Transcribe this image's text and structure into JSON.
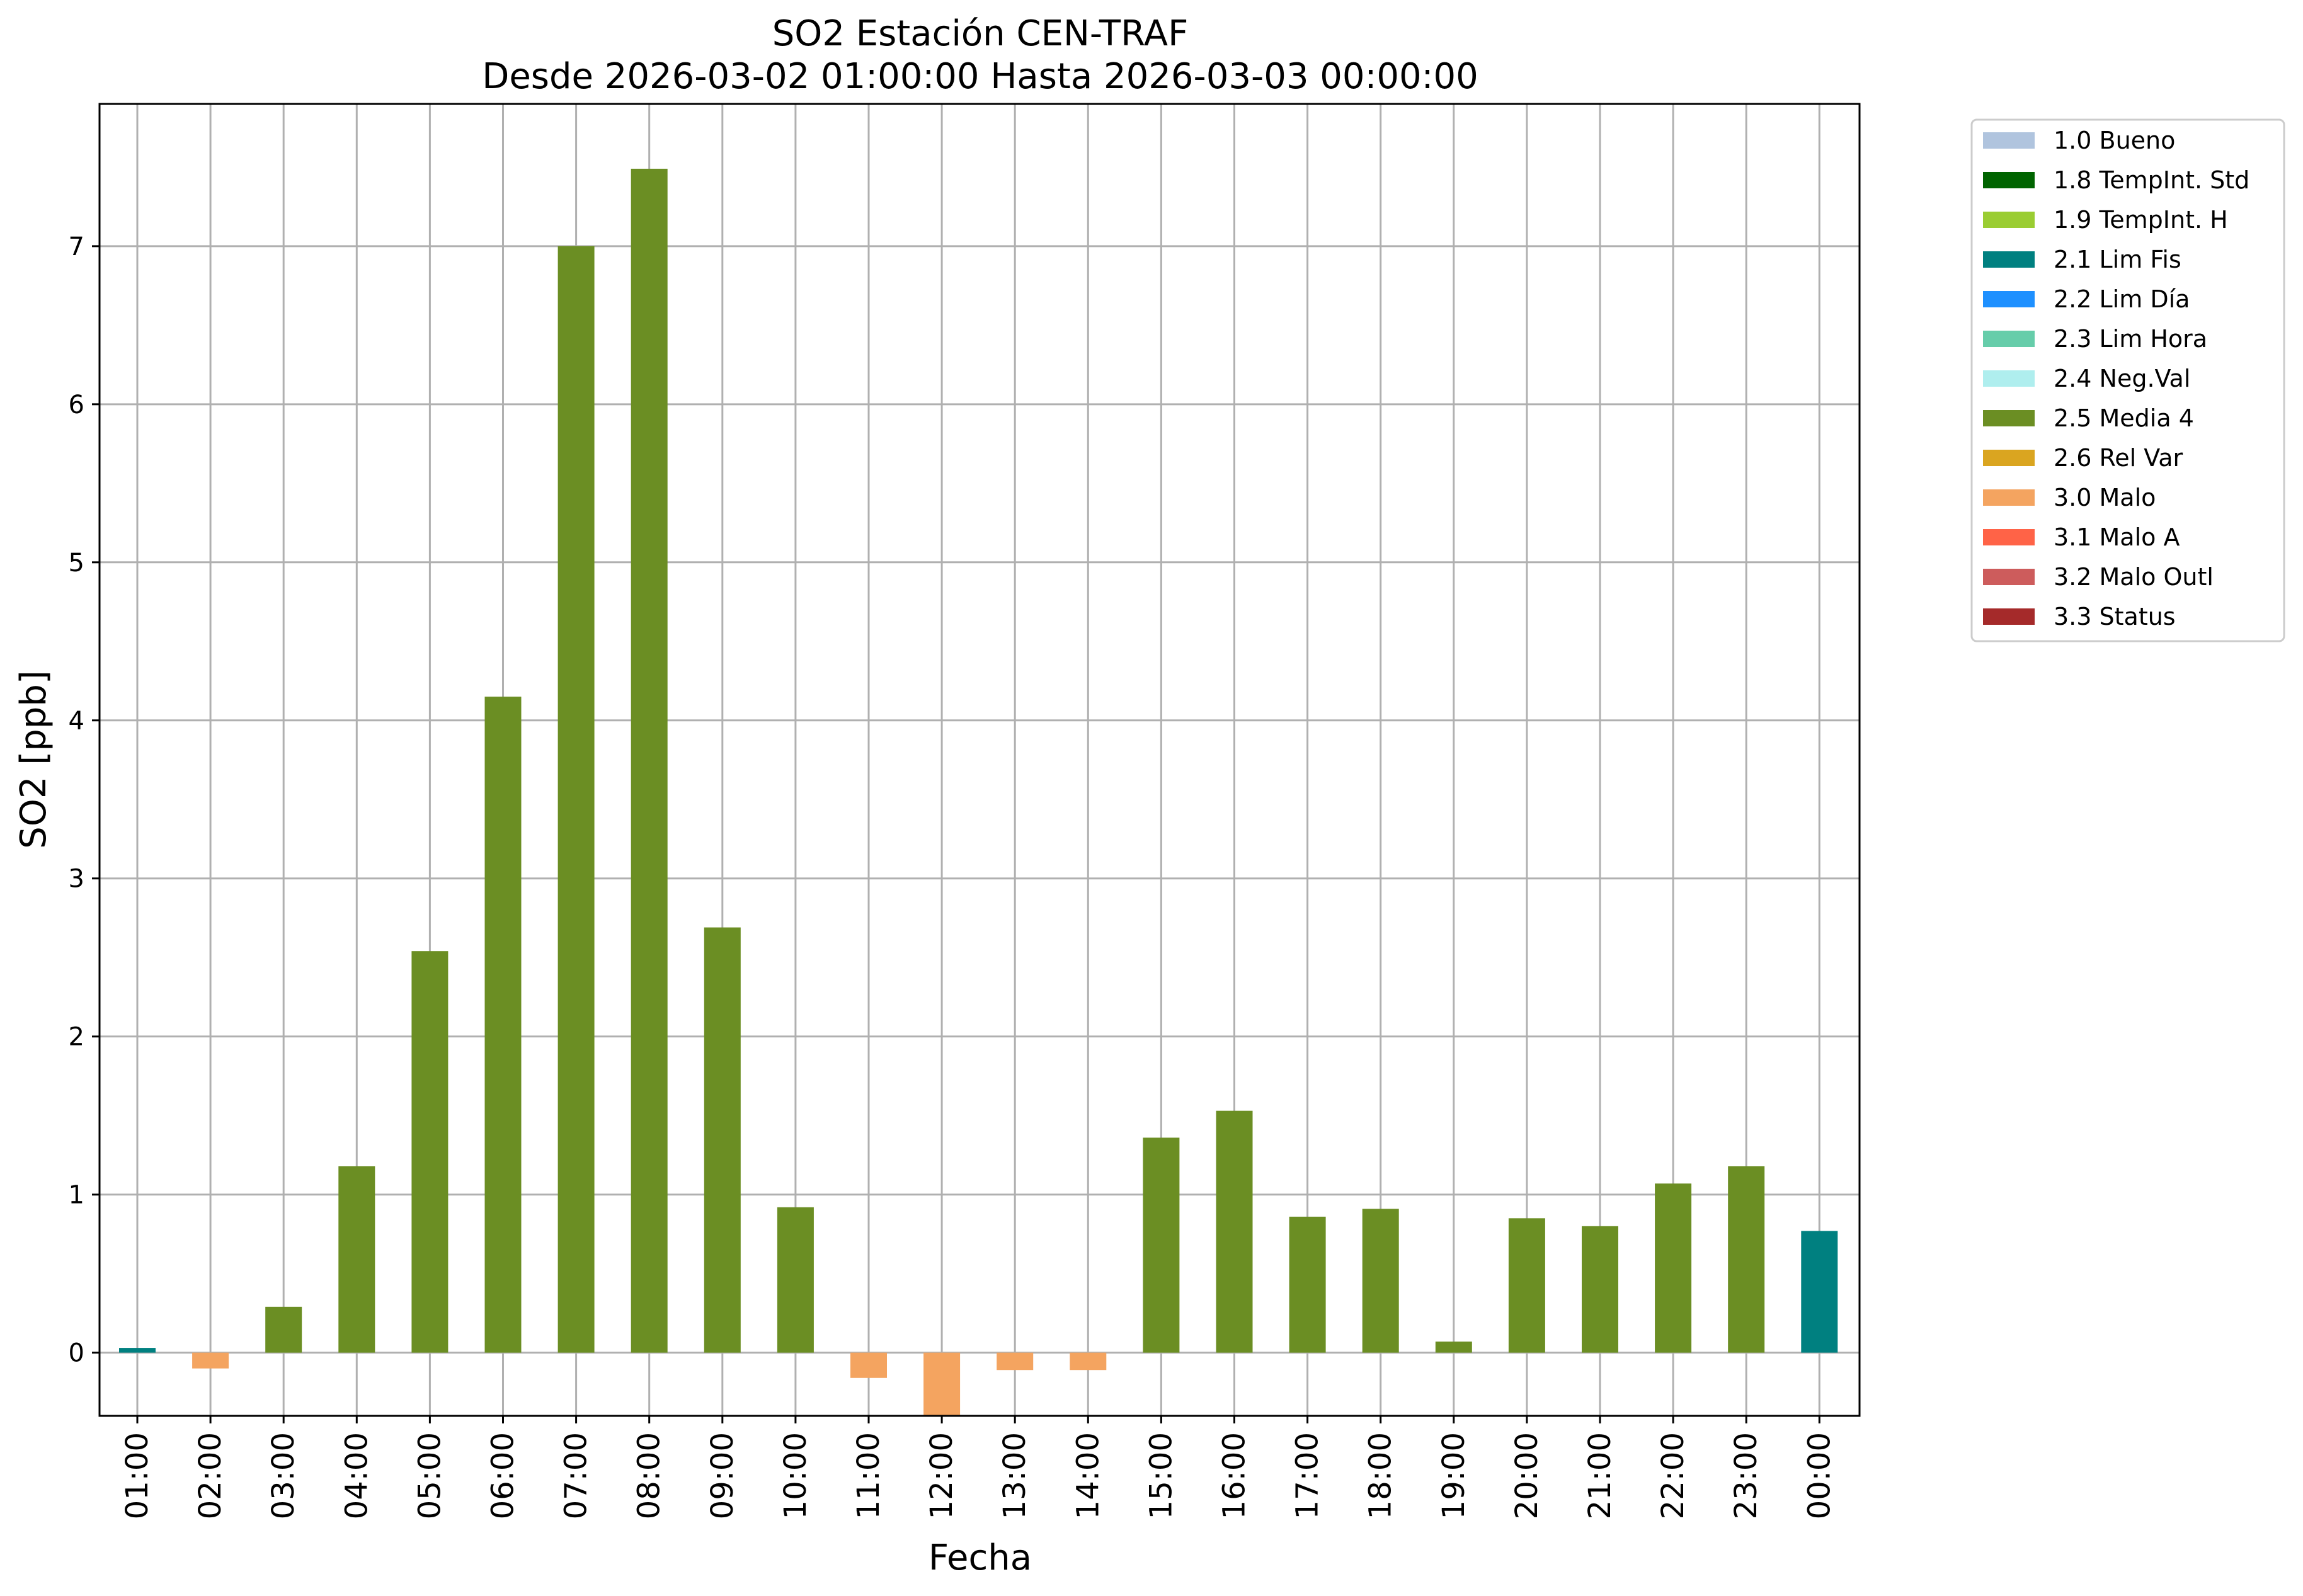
{
  "chart_data": {
    "type": "bar",
    "title": "SO2 Estación CEN-TRAF",
    "subtitle": "Desde 2026-03-02 01:00:00 Hasta 2026-03-03 00:00:00",
    "xlabel": "Fecha",
    "ylabel": "SO2 [ppb]",
    "ylim": [
      -0.4,
      7.9
    ],
    "yticks": [
      0,
      1,
      2,
      3,
      4,
      5,
      6,
      7
    ],
    "grid": true,
    "legend_position": "outside-top-right",
    "categories": [
      "01:00",
      "02:00",
      "03:00",
      "04:00",
      "05:00",
      "06:00",
      "07:00",
      "08:00",
      "09:00",
      "10:00",
      "11:00",
      "12:00",
      "13:00",
      "14:00",
      "15:00",
      "16:00",
      "17:00",
      "18:00",
      "19:00",
      "20:00",
      "21:00",
      "22:00",
      "23:00",
      "00:00"
    ],
    "values": [
      0.03,
      -0.1,
      0.29,
      1.18,
      2.54,
      4.15,
      7.0,
      7.49,
      2.69,
      0.92,
      -0.16,
      -0.45,
      -0.11,
      -0.11,
      1.36,
      1.53,
      0.86,
      0.91,
      0.07,
      0.85,
      0.8,
      1.07,
      1.18,
      0.77
    ],
    "flags": [
      "2.1 Lim Fis",
      "3.0 Malo",
      "2.5 Media 4",
      "2.5 Media 4",
      "2.5 Media 4",
      "2.5 Media 4",
      "2.5 Media 4",
      "2.5 Media 4",
      "2.5 Media 4",
      "2.5 Media 4",
      "3.0 Malo",
      "3.0 Malo",
      "3.0 Malo",
      "3.0 Malo",
      "2.5 Media 4",
      "2.5 Media 4",
      "2.5 Media 4",
      "2.5 Media 4",
      "2.5 Media 4",
      "2.5 Media 4",
      "2.5 Media 4",
      "2.5 Media 4",
      "2.5 Media 4",
      "2.1 Lim Fis"
    ],
    "legend": [
      {
        "label": "1.0 Bueno",
        "color": "#b0c4de"
      },
      {
        "label": "1.8 TempInt. Std",
        "color": "#006400"
      },
      {
        "label": "1.9 TempInt. H",
        "color": "#9acd32"
      },
      {
        "label": "2.1 Lim Fis",
        "color": "#008080"
      },
      {
        "label": "2.2 Lim Día",
        "color": "#1e90ff"
      },
      {
        "label": "2.3 Lim Hora",
        "color": "#66cdaa"
      },
      {
        "label": "2.4 Neg.Val",
        "color": "#afeeee"
      },
      {
        "label": "2.5 Media 4",
        "color": "#6b8e23"
      },
      {
        "label": "2.6 Rel Var",
        "color": "#daa520"
      },
      {
        "label": "3.0 Malo",
        "color": "#f4a460"
      },
      {
        "label": "3.1 Malo A",
        "color": "#ff6347"
      },
      {
        "label": "3.2 Malo Outl",
        "color": "#cd5c5c"
      },
      {
        "label": "3.3 Status",
        "color": "#a52a2a"
      }
    ]
  }
}
